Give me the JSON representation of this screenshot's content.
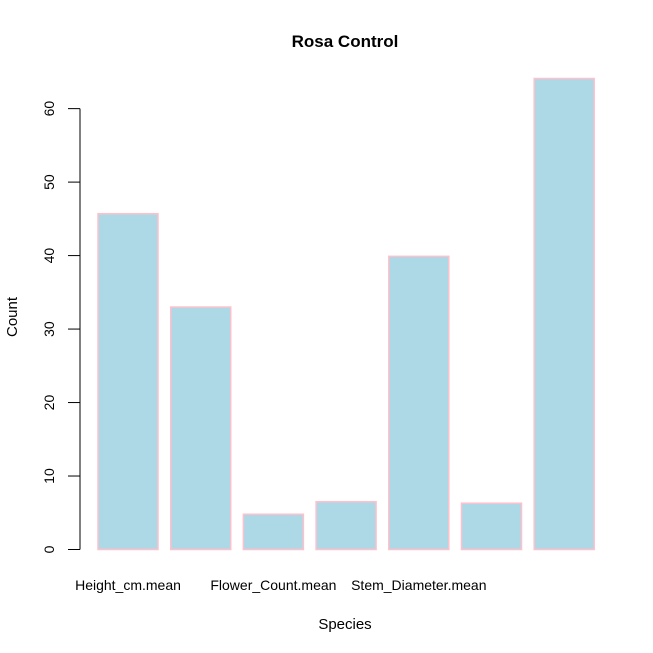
{
  "chart_data": {
    "type": "bar",
    "title": "Rosa Control",
    "xlabel": "Species",
    "ylabel": "Count",
    "categories": [
      "Height_cm.mean",
      "",
      "Flower_Count.mean",
      "",
      "Stem_Diameter.mean",
      "",
      ""
    ],
    "values": [
      45.7,
      33.0,
      4.8,
      6.5,
      39.9,
      6.3,
      64.1
    ],
    "ylim": [
      0,
      64.1
    ],
    "yticks": [
      0,
      10,
      20,
      30,
      40,
      50,
      60
    ],
    "grid": false,
    "legend": "none",
    "colors": {
      "bar_fill": "#ADD8E6",
      "bar_border": "#FFC0CB",
      "axis": "#000000",
      "background": "#FFFFFF"
    }
  }
}
